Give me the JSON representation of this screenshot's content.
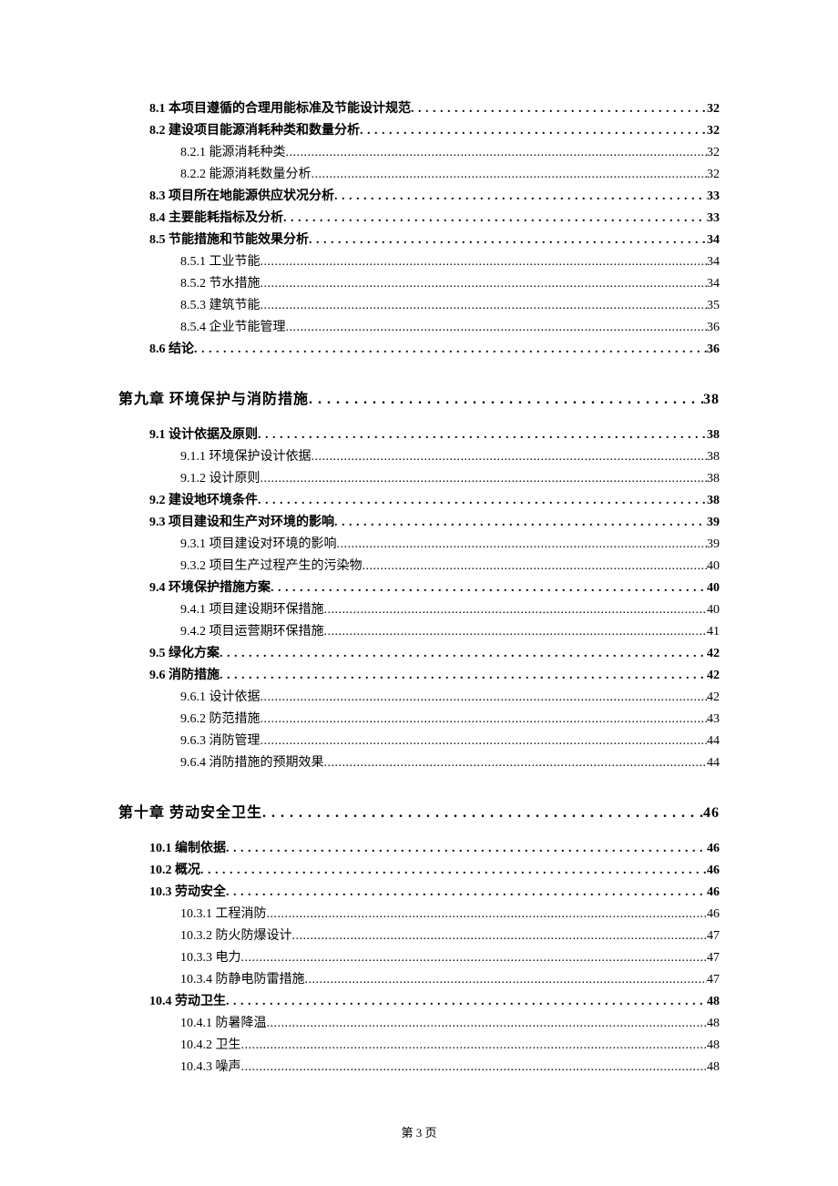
{
  "footer": "第 3 页",
  "entries": [
    {
      "level": 2,
      "label": "8.1 本项目遵循的合理用能标准及节能设计规范",
      "page": "32"
    },
    {
      "level": 2,
      "label": "8.2 建设项目能源消耗种类和数量分析",
      "page": "32"
    },
    {
      "level": 3,
      "label": "8.2.1 能源消耗种类",
      "page": "32"
    },
    {
      "level": 3,
      "label": "8.2.2 能源消耗数量分析",
      "page": "32"
    },
    {
      "level": 2,
      "label": "8.3 项目所在地能源供应状况分析",
      "page": "33"
    },
    {
      "level": 2,
      "label": "8.4 主要能耗指标及分析",
      "page": "33"
    },
    {
      "level": 2,
      "label": "8.5 节能措施和节能效果分析",
      "page": "34"
    },
    {
      "level": 3,
      "label": "8.5.1 工业节能",
      "page": "34"
    },
    {
      "level": 3,
      "label": "8.5.2 节水措施",
      "page": "34"
    },
    {
      "level": 3,
      "label": "8.5.3 建筑节能",
      "page": "35"
    },
    {
      "level": 3,
      "label": "8.5.4 企业节能管理",
      "page": "36"
    },
    {
      "level": 2,
      "label": "8.6 结论",
      "page": "36"
    },
    {
      "level": 1,
      "label": "第九章  环境保护与消防措施",
      "page": "38"
    },
    {
      "level": 2,
      "label": "9.1 设计依据及原则",
      "page": "38"
    },
    {
      "level": 3,
      "label": "9.1.1 环境保护设计依据",
      "page": "38"
    },
    {
      "level": 3,
      "label": "9.1.2 设计原则",
      "page": "38"
    },
    {
      "level": 2,
      "label": "9.2 建设地环境条件",
      "page": "38"
    },
    {
      "level": 2,
      "label": "9.3  项目建设和生产对环境的影响",
      "page": "39"
    },
    {
      "level": 3,
      "label": "9.3.1  项目建设对环境的影响",
      "page": "39"
    },
    {
      "level": 3,
      "label": "9.3.2  项目生产过程产生的污染物",
      "page": "40"
    },
    {
      "level": 2,
      "label": "9.4  环境保护措施方案",
      "page": "40"
    },
    {
      "level": 3,
      "label": "9.4.1  项目建设期环保措施",
      "page": "40"
    },
    {
      "level": 3,
      "label": "9.4.2  项目运营期环保措施",
      "page": "41"
    },
    {
      "level": 2,
      "label": "9.5 绿化方案",
      "page": "42"
    },
    {
      "level": 2,
      "label": "9.6 消防措施",
      "page": "42"
    },
    {
      "level": 3,
      "label": "9.6.1 设计依据",
      "page": "42"
    },
    {
      "level": 3,
      "label": "9.6.2 防范措施",
      "page": "43"
    },
    {
      "level": 3,
      "label": "9.6.3 消防管理",
      "page": "44"
    },
    {
      "level": 3,
      "label": "9.6.4 消防措施的预期效果",
      "page": "44"
    },
    {
      "level": 1,
      "label": "第十章  劳动安全卫生",
      "page": "46"
    },
    {
      "level": 2,
      "label": "10.1  编制依据",
      "page": "46"
    },
    {
      "level": 2,
      "label": "10.2 概况",
      "page": "46"
    },
    {
      "level": 2,
      "label": "10.3  劳动安全",
      "page": "46"
    },
    {
      "level": 3,
      "label": "10.3.1 工程消防",
      "page": "46"
    },
    {
      "level": 3,
      "label": "10.3.2 防火防爆设计",
      "page": "47"
    },
    {
      "level": 3,
      "label": "10.3.3 电力",
      "page": "47"
    },
    {
      "level": 3,
      "label": "10.3.4 防静电防雷措施",
      "page": "47"
    },
    {
      "level": 2,
      "label": "10.4 劳动卫生",
      "page": "48"
    },
    {
      "level": 3,
      "label": "10.4.1 防暑降温",
      "page": "48"
    },
    {
      "level": 3,
      "label": "10.4.2 卫生",
      "page": "48"
    },
    {
      "level": 3,
      "label": "10.4.3 噪声",
      "page": "48"
    }
  ]
}
